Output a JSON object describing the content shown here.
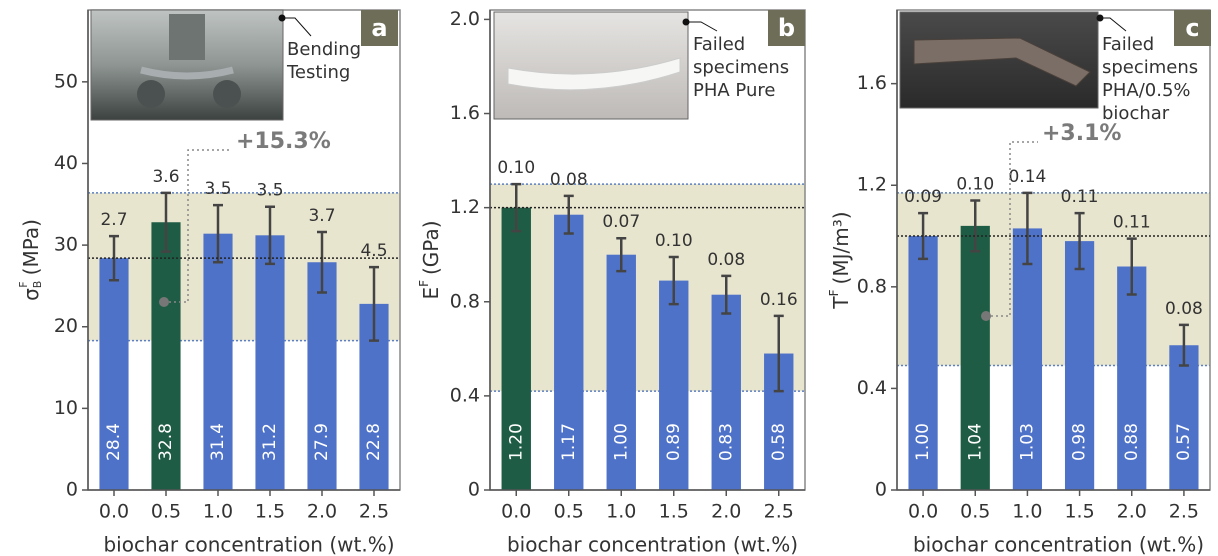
{
  "chart_data": [
    {
      "type": "bar",
      "panel_label": "a",
      "ylabel": "σ",
      "ylabel_sup": "F",
      "ylabel_sub": "B",
      "ylabel_unit": "(MPa)",
      "xlabel": "biochar concentration (wt.%)",
      "inset_lines": [
        "Bending",
        "Testing"
      ],
      "annotation": "+15.3%",
      "categories": [
        "0.0",
        "0.5",
        "1.0",
        "1.5",
        "2.0",
        "2.5"
      ],
      "values": [
        28.4,
        32.8,
        31.4,
        31.2,
        27.9,
        22.8
      ],
      "errors": [
        2.7,
        3.6,
        3.5,
        3.5,
        3.7,
        4.5
      ],
      "color": "#4f72c9",
      "highlight_index": 1,
      "highlight_color": "#1f5c45",
      "ylim": [
        0,
        58.8
      ],
      "yticks": [
        0,
        10,
        20,
        30,
        40,
        50
      ],
      "band": [
        18.3,
        36.4
      ],
      "reference": 28.4
    },
    {
      "type": "bar",
      "panel_label": "b",
      "ylabel": "E",
      "ylabel_sup": "F",
      "ylabel_unit": "(GPa)",
      "xlabel": "biochar concentration (wt.%)",
      "inset_lines": [
        "Failed",
        "specimens",
        "PHA Pure"
      ],
      "categories": [
        "0.0",
        "0.5",
        "1.0",
        "1.5",
        "2.0",
        "2.5"
      ],
      "values": [
        1.2,
        1.17,
        1.0,
        0.89,
        0.83,
        0.58
      ],
      "value_labels": [
        "1.20",
        "1.17",
        "1.00",
        "0.89",
        "0.83",
        "0.58"
      ],
      "errors": [
        0.1,
        0.08,
        0.07,
        0.1,
        0.08,
        0.16
      ],
      "error_labels": [
        "0.10",
        "0.08",
        "0.07",
        "0.10",
        "0.08",
        "0.16"
      ],
      "color": "#4f72c9",
      "highlight_index": 0,
      "highlight_color": "#1f5c45",
      "ylim": [
        0,
        2.04
      ],
      "yticks": [
        0,
        0.4,
        0.8,
        1.2,
        1.6,
        {
          "value": 2,
          "label": "2.0"
        }
      ],
      "band": [
        0.42,
        1.3
      ],
      "reference": 1.2
    },
    {
      "type": "bar",
      "panel_label": "c",
      "ylabel": "T",
      "ylabel_sup": "F",
      "ylabel_unit": "(MJ/m³)",
      "xlabel": "biochar concentration (wt.%)",
      "inset_lines": [
        "Failed",
        "specimens",
        "PHA/0.5%",
        "biochar"
      ],
      "annotation": "+3.1%",
      "categories": [
        "0.0",
        "0.5",
        "1.0",
        "1.5",
        "2.0",
        "2.5"
      ],
      "values": [
        1.0,
        1.04,
        1.03,
        0.98,
        0.88,
        0.57
      ],
      "value_labels": [
        "1.00",
        "1.04",
        "1.03",
        "0.98",
        "0.88",
        "0.57"
      ],
      "errors": [
        0.09,
        0.1,
        0.14,
        0.11,
        0.11,
        0.08
      ],
      "error_labels": [
        "0.09",
        "0.10",
        "0.14",
        "0.11",
        "0.11",
        "0.08"
      ],
      "color": "#4f72c9",
      "highlight_index": 1,
      "highlight_color": "#1f5c45",
      "ylim": [
        0,
        1.89
      ],
      "yticks": [
        0,
        0.4,
        0.8,
        1.2,
        1.6
      ],
      "band": [
        0.49,
        1.17
      ],
      "reference": 1.0
    }
  ]
}
